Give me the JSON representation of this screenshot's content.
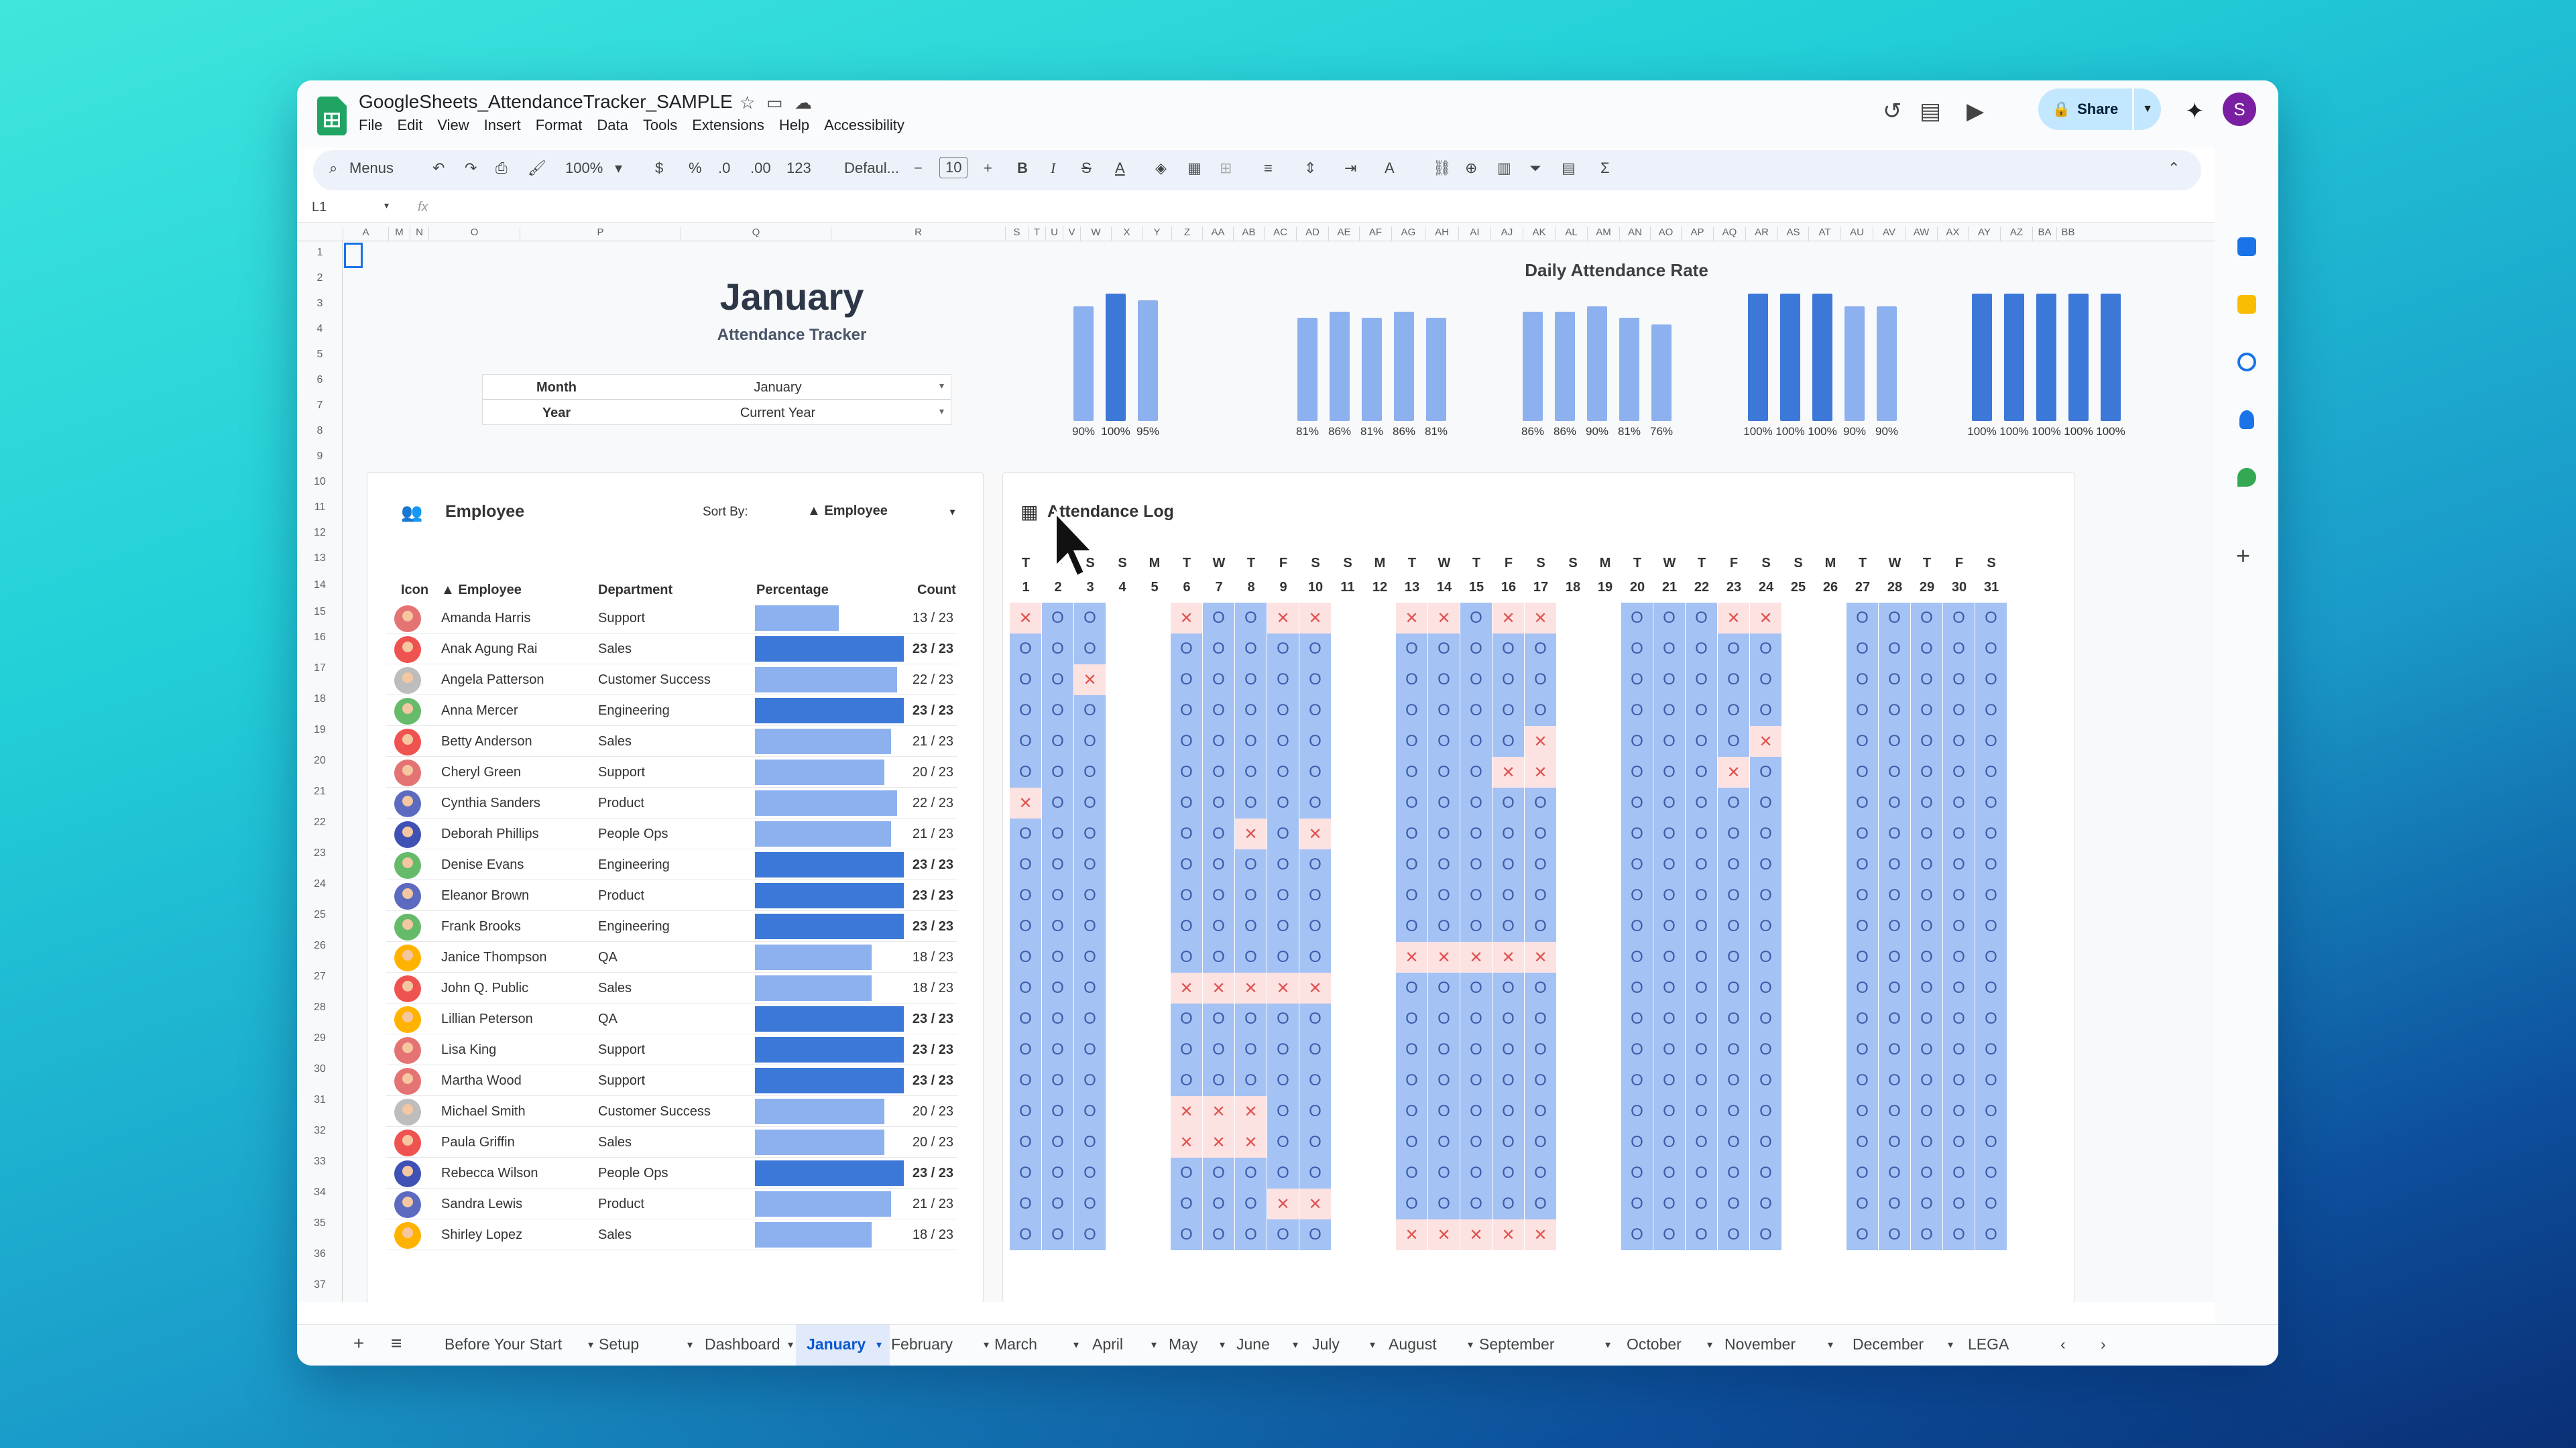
{
  "doc": {
    "title": "GoogleSheets_AttendanceTracker_SAMPLE",
    "menu": [
      "File",
      "Edit",
      "View",
      "Insert",
      "Format",
      "Data",
      "Tools",
      "Extensions",
      "Help",
      "Accessibility"
    ],
    "share_label": "Share",
    "avatar_letter": "S"
  },
  "toolbar": {
    "menus_label": "Menus",
    "zoom": "100%",
    "currency": "$",
    "percent": "%",
    "dec_less": ".0",
    "dec_more": ".00",
    "number_format": "123",
    "font": "Defaul...",
    "font_size": "10"
  },
  "formula_bar": {
    "cell_ref": "L1",
    "fx": "fx"
  },
  "columns": [
    "A",
    "M",
    "N",
    "O",
    "P",
    "Q",
    "R",
    "S",
    "T",
    "U",
    "V",
    "W",
    "X",
    "Y",
    "Z",
    "AA",
    "AB",
    "AC",
    "AD",
    "AE",
    "AF",
    "AG",
    "AH",
    "AI",
    "AJ",
    "AK",
    "AL",
    "AM",
    "AN",
    "AO",
    "AP",
    "AQ",
    "AR",
    "AS",
    "AT",
    "AU",
    "AV",
    "AW",
    "AX",
    "AY",
    "AZ",
    "BA",
    "BB"
  ],
  "header": {
    "month_title": "January",
    "subtitle": "Attendance Tracker"
  },
  "selectors": [
    {
      "label": "Month",
      "value": "January"
    },
    {
      "label": "Year",
      "value": "Current Year"
    }
  ],
  "chart_data": {
    "type": "bar",
    "title": "Daily Attendance Rate",
    "groups": [
      {
        "values": [
          90,
          100,
          95
        ],
        "labels": [
          "90%",
          "100%",
          "95%"
        ]
      },
      {
        "values": [
          81,
          86,
          81,
          86,
          81
        ],
        "labels": [
          "81%",
          "86%",
          "81%",
          "86%",
          "81%"
        ]
      },
      {
        "values": [
          86,
          86,
          90,
          81,
          76
        ],
        "labels": [
          "86%",
          "86%",
          "90%",
          "81%",
          "76%"
        ]
      },
      {
        "values": [
          100,
          100,
          100,
          90,
          90
        ],
        "labels": [
          "100%",
          "100%",
          "100%",
          "90%",
          "90%"
        ]
      },
      {
        "values": [
          100,
          100,
          100,
          100,
          100
        ],
        "labels": [
          "100%",
          "100%",
          "100%",
          "100%",
          "100%"
        ]
      }
    ],
    "ylim": [
      0,
      100
    ],
    "colors": {
      "full": "#3c78d8",
      "partial": "#8db0ef"
    }
  },
  "employee_panel": {
    "title": "Employee",
    "sort_label": "Sort By:",
    "sort_value": "▲ Employee",
    "headers": {
      "icon": "Icon",
      "employee": "▲ Employee",
      "department": "Department",
      "percentage": "Percentage",
      "count": "Count"
    },
    "rows": [
      {
        "name": "Amanda Harris",
        "dept": "Support",
        "present": 13,
        "count": "13 / 23",
        "avatar": "#e57373"
      },
      {
        "name": "Anak Agung Rai",
        "dept": "Sales",
        "present": 23,
        "count": "23 / 23",
        "avatar": "#ef5350"
      },
      {
        "name": "Angela Patterson",
        "dept": "Customer Success",
        "present": 22,
        "count": "22 / 23",
        "avatar": "#bdbdbd"
      },
      {
        "name": "Anna Mercer",
        "dept": "Engineering",
        "present": 23,
        "count": "23 / 23",
        "avatar": "#66bb6a"
      },
      {
        "name": "Betty Anderson",
        "dept": "Sales",
        "present": 21,
        "count": "21 / 23",
        "avatar": "#ef5350"
      },
      {
        "name": "Cheryl Green",
        "dept": "Support",
        "present": 20,
        "count": "20 / 23",
        "avatar": "#e57373"
      },
      {
        "name": "Cynthia Sanders",
        "dept": "Product",
        "present": 22,
        "count": "22 / 23",
        "avatar": "#5c6bc0"
      },
      {
        "name": "Deborah Phillips",
        "dept": "People Ops",
        "present": 21,
        "count": "21 / 23",
        "avatar": "#3f51b5"
      },
      {
        "name": "Denise Evans",
        "dept": "Engineering",
        "present": 23,
        "count": "23 / 23",
        "avatar": "#66bb6a"
      },
      {
        "name": "Eleanor Brown",
        "dept": "Product",
        "present": 23,
        "count": "23 / 23",
        "avatar": "#5c6bc0"
      },
      {
        "name": "Frank Brooks",
        "dept": "Engineering",
        "present": 23,
        "count": "23 / 23",
        "avatar": "#66bb6a"
      },
      {
        "name": "Janice Thompson",
        "dept": "QA",
        "present": 18,
        "count": "18 / 23",
        "avatar": "#ffb300"
      },
      {
        "name": "John Q. Public",
        "dept": "Sales",
        "present": 18,
        "count": "18 / 23",
        "avatar": "#ef5350"
      },
      {
        "name": "Lillian Peterson",
        "dept": "QA",
        "present": 23,
        "count": "23 / 23",
        "avatar": "#ffb300"
      },
      {
        "name": "Lisa King",
        "dept": "Support",
        "present": 23,
        "count": "23 / 23",
        "avatar": "#e57373"
      },
      {
        "name": "Martha Wood",
        "dept": "Support",
        "present": 23,
        "count": "23 / 23",
        "avatar": "#e57373"
      },
      {
        "name": "Michael Smith",
        "dept": "Customer Success",
        "present": 20,
        "count": "20 / 23",
        "avatar": "#bdbdbd"
      },
      {
        "name": "Paula Griffin",
        "dept": "Sales",
        "present": 20,
        "count": "20 / 23",
        "avatar": "#ef5350"
      },
      {
        "name": "Rebecca Wilson",
        "dept": "People Ops",
        "present": 23,
        "count": "23 / 23",
        "avatar": "#3f51b5"
      },
      {
        "name": "Sandra Lewis",
        "dept": "Product",
        "present": 21,
        "count": "21 / 23",
        "avatar": "#5c6bc0"
      },
      {
        "name": "Shirley Lopez",
        "dept": "Sales",
        "present": 18,
        "count": "18 / 23",
        "avatar": "#ffb300"
      }
    ]
  },
  "attendance": {
    "title": "Attendance Log",
    "days": [
      {
        "w": "T",
        "d": "1",
        "work": true
      },
      {
        "w": "F",
        "d": "2",
        "work": true
      },
      {
        "w": "S",
        "d": "3",
        "work": true
      },
      {
        "w": "S",
        "d": "4",
        "work": false
      },
      {
        "w": "M",
        "d": "5",
        "work": false
      },
      {
        "w": "T",
        "d": "6",
        "work": true
      },
      {
        "w": "W",
        "d": "7",
        "work": true
      },
      {
        "w": "T",
        "d": "8",
        "work": true
      },
      {
        "w": "F",
        "d": "9",
        "work": true
      },
      {
        "w": "S",
        "d": "10",
        "work": true
      },
      {
        "w": "S",
        "d": "11",
        "work": false
      },
      {
        "w": "M",
        "d": "12",
        "work": false
      },
      {
        "w": "T",
        "d": "13",
        "work": true
      },
      {
        "w": "W",
        "d": "14",
        "work": true
      },
      {
        "w": "T",
        "d": "15",
        "work": true
      },
      {
        "w": "F",
        "d": "16",
        "work": true
      },
      {
        "w": "S",
        "d": "17",
        "work": true
      },
      {
        "w": "S",
        "d": "18",
        "work": false
      },
      {
        "w": "M",
        "d": "19",
        "work": false
      },
      {
        "w": "T",
        "d": "20",
        "work": true
      },
      {
        "w": "W",
        "d": "21",
        "work": true
      },
      {
        "w": "T",
        "d": "22",
        "work": true
      },
      {
        "w": "F",
        "d": "23",
        "work": true
      },
      {
        "w": "S",
        "d": "24",
        "work": true
      },
      {
        "w": "S",
        "d": "25",
        "work": false
      },
      {
        "w": "M",
        "d": "26",
        "work": false
      },
      {
        "w": "T",
        "d": "27",
        "work": true
      },
      {
        "w": "W",
        "d": "28",
        "work": true
      },
      {
        "w": "T",
        "d": "29",
        "work": true
      },
      {
        "w": "F",
        "d": "30",
        "work": true
      },
      {
        "w": "S",
        "d": "31",
        "work": true
      }
    ],
    "present_symbol": "O",
    "absent_symbol": "✕",
    "absences": [
      [
        1,
        6,
        9,
        10,
        13,
        14,
        16,
        17,
        23,
        24
      ],
      [],
      [
        3
      ],
      [],
      [
        17,
        24
      ],
      [
        16,
        17,
        23
      ],
      [
        1
      ],
      [
        8,
        10
      ],
      [],
      [],
      [],
      [
        13,
        14,
        15,
        16,
        17
      ],
      [
        6,
        7,
        8,
        9,
        10
      ],
      [],
      [],
      [],
      [
        6,
        7,
        8
      ],
      [
        6,
        7,
        8
      ],
      [],
      [
        9,
        10
      ],
      [
        13,
        14,
        15,
        16,
        17
      ]
    ]
  },
  "sheet_tabs": [
    "Before Your Start",
    "Setup",
    "Dashboard",
    "January",
    "February",
    "March",
    "April",
    "May",
    "June",
    "July",
    "August",
    "September",
    "October",
    "November",
    "December",
    "LEGA"
  ],
  "active_tab": "January"
}
